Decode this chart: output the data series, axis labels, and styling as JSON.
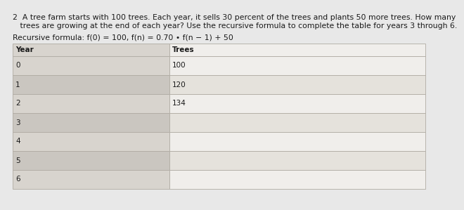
{
  "problem_number": "2",
  "problem_line1": "2  A tree farm starts with 100 trees. Each year, it sells 30 percent of the trees and plants 50 more trees. How many",
  "problem_line2": "   trees are growing at the end of each year? Use the recursive formula to complete the table for years 3 through 6.",
  "formula_text": "Recursive formula: f(0) = 100, f(n) = 0.70 • f(n − 1) + 50",
  "col1_header": "Year",
  "col2_header": "Trees",
  "years": [
    "0",
    "1",
    "2",
    "3",
    "4",
    "5",
    "6"
  ],
  "trees": [
    "100",
    "120",
    "134",
    "",
    "",
    "",
    ""
  ],
  "fig_bg": "#e8e8e8",
  "table_bg": "#f0eeeb",
  "col1_bg_even": "#d8d4ce",
  "col1_bg_odd": "#cac6c0",
  "col2_bg_even": "#f0eeeb",
  "col2_bg_odd": "#e5e2dc",
  "header_col1_bg": "#d8d4ce",
  "header_col2_bg": "#f0eeeb",
  "text_color": "#1a1a1a",
  "line_color": "#b0aba3",
  "font_size_text": 7.8,
  "font_size_table": 7.5
}
